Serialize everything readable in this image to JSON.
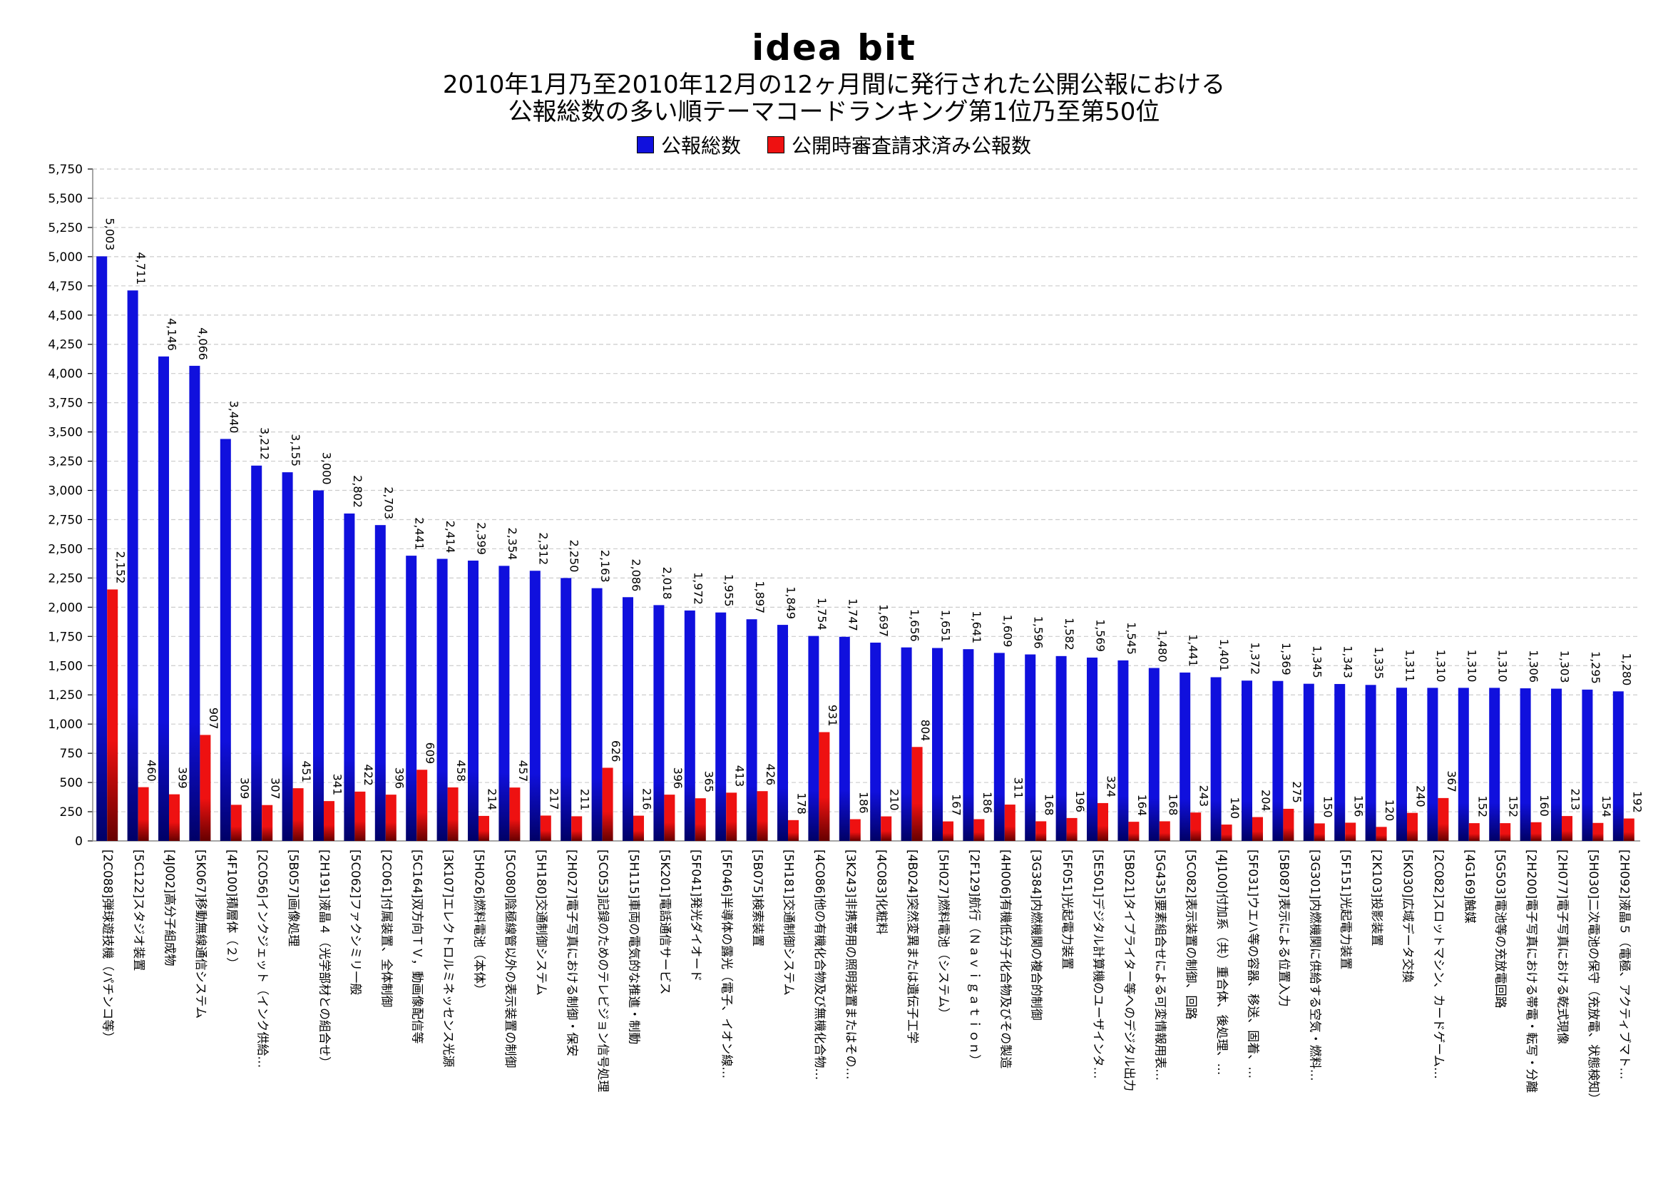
{
  "header": {
    "brand": "idea bit",
    "title_line1": "2010年1月乃至2010年12月の12ヶ月間に発行された公開公報における",
    "title_line2": "公報総数の多い順テーマコードランキング第1位乃至第50位"
  },
  "colors": {
    "series1": "#1010dd",
    "series1_dark": "#000066",
    "series2": "#ee1111",
    "series2_dark": "#660000",
    "grid": "#cccccc"
  },
  "chart_data": {
    "type": "bar",
    "title": "2010年1月乃至2010年12月の12ヶ月間に発行された公開公報における 公報総数の多い順テーマコードランキング第1位乃至第50位",
    "ylim": [
      0,
      5750
    ],
    "ytick_step": 250,
    "grid": true,
    "legend_position": "top-center",
    "categories": [
      "[2C088]弾球遊技機（パチンコ等）",
      "[5C122]スタジオ装置",
      "[4J002]高分子組成物",
      "[5K067]移動無線通信システム",
      "[4F100]積層体（２）",
      "[2C056]インクジェット（インク供給…",
      "[5B057]画像処理",
      "[2H191]液晶４（光学部材との組合せ）",
      "[5C062]ファクシミリ一般",
      "[2C061]付属装置、全体制御",
      "[5C164]双方向ＴＶ，動画像配信等",
      "[3K107]エレクトロルミネッセンス光源",
      "[5H026]燃料電池（本体）",
      "[5C080]陰極線管以外の表示装置の制御",
      "[5H180]交通制御システム",
      "[2H027]電子写真における制御・保安",
      "[5C053]記録のためのテレビジョン信号処理",
      "[5H115]車両の電気的な推進・制動",
      "[5K201]電話通信サービス",
      "[5F041]発光ダイオード",
      "[5F046]半導体の露光（電子、イオン線…",
      "[5B075]検索装置",
      "[5H181]交通制御システム",
      "[4C086]他の有機化合物及び無機化合物…",
      "[3K243]非携帯用の照明装置またはその…",
      "[4C083]化粧料",
      "[4B024]突然変異または遺伝子工学",
      "[5H027]燃料電池（システム）",
      "[2F129]航行（Ｎａｖｉｇａｔｉｏｎ）",
      "[4H006]有機低分子化合物及びその製造",
      "[3G384]内燃機関の複合的制御",
      "[5F051]光起電力装置",
      "[5E501]デジタル計算機のユーザインタ…",
      "[5B021]タイプライター等へのデジタル出力",
      "[5G435]要素組合せによる可変情報用表…",
      "[5C082]表示装置の制御、回路",
      "[4J100]付加系（共）重合体、後処理、…",
      "[5F031]ウエハ等の容器、移送、固着、…",
      "[5B087]表示による位置入力",
      "[3G301]内燃機関に供給する空気・燃料…",
      "[5F151]光起電力装置",
      "[2K103]投影装置",
      "[5K030]広域データ交換",
      "[2C082]スロットマシン、カードゲーム…",
      "[4G169]触媒",
      "[5G503]電池等の充放電回路",
      "[2H200]電子写真における帯電・転写・分離",
      "[2H077]電子写真における乾式現像",
      "[5H030]二次電池の保守（充放電、状態検知）",
      "[2H092]液晶５（電極、アクティブマト…"
    ],
    "series": [
      {
        "name": "公報総数",
        "values": [
          5003,
          4711,
          4146,
          4066,
          3440,
          3212,
          3155,
          3000,
          2802,
          2703,
          2441,
          2414,
          2399,
          2354,
          2312,
          2250,
          2163,
          2086,
          2018,
          1972,
          1955,
          1897,
          1849,
          1754,
          1747,
          1697,
          1656,
          1651,
          1641,
          1609,
          1596,
          1582,
          1569,
          1545,
          1480,
          1441,
          1401,
          1372,
          1369,
          1345,
          1343,
          1335,
          1311,
          1310,
          1310,
          1310,
          1306,
          1303,
          1295,
          1280
        ]
      },
      {
        "name": "公開時審査請求済み公報数",
        "values": [
          2152,
          460,
          399,
          907,
          309,
          307,
          451,
          341,
          422,
          396,
          609,
          458,
          214,
          457,
          217,
          211,
          626,
          216,
          396,
          365,
          413,
          426,
          178,
          931,
          186,
          210,
          804,
          167,
          186,
          311,
          168,
          196,
          324,
          164,
          168,
          243,
          140,
          204,
          275,
          150,
          156,
          120,
          240,
          367,
          152,
          152,
          160,
          213,
          154,
          192
        ]
      }
    ]
  }
}
